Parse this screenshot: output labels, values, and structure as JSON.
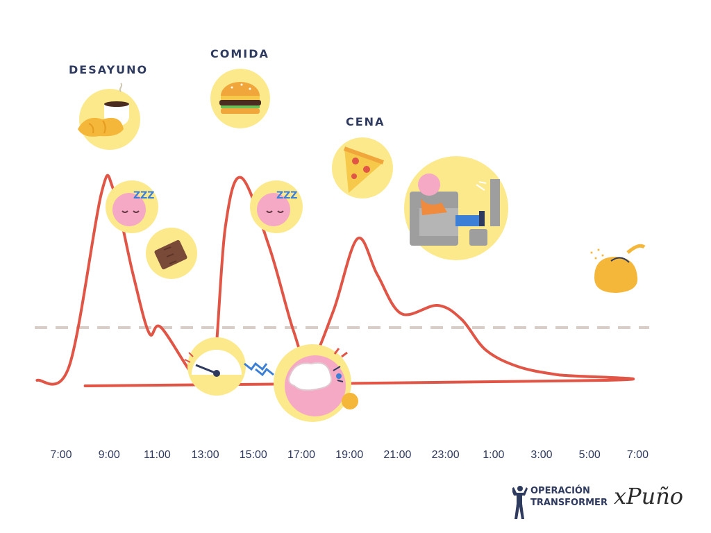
{
  "chart_data": {
    "type": "line",
    "title": "",
    "xlabel": "",
    "ylabel": "",
    "x_tick_labels": [
      "7:00",
      "9:00",
      "11:00",
      "13:00",
      "15:00",
      "17:00",
      "19:00",
      "21:00",
      "23:00",
      "1:00",
      "3:00",
      "5:00",
      "7:00"
    ],
    "series": [
      {
        "values": [
          [
            "6:00",
            1.5
          ],
          [
            "7:20",
            2.0
          ],
          [
            "8:40",
            8.2
          ],
          [
            "9:10",
            8.4
          ],
          [
            "10:00",
            5.3
          ],
          [
            "10:40",
            3.2
          ],
          [
            "11:10",
            3.4
          ],
          [
            "12:40",
            1.5
          ],
          [
            "13:20",
            1.7
          ],
          [
            "13:50",
            7.0
          ],
          [
            "14:30",
            8.8
          ],
          [
            "15:40",
            6.3
          ],
          [
            "16:40",
            3.3
          ],
          [
            "17:20",
            2.1
          ],
          [
            "18:20",
            4.0
          ],
          [
            "19:20",
            6.6
          ],
          [
            "20:10",
            5.3
          ],
          [
            "21:10",
            3.9
          ],
          [
            "22:40",
            4.2
          ],
          [
            "23:40",
            3.7
          ],
          [
            "0:40",
            2.6
          ],
          [
            "2:00",
            2.0
          ],
          [
            "3:40",
            1.7
          ],
          [
            "5:40",
            1.5
          ],
          [
            "8:00",
            1.3
          ]
        ]
      }
    ],
    "reference_line": {
      "style": "dashed",
      "y": 3.4,
      "color": "#d9cdc8"
    },
    "line_color": "#e05545",
    "grid": false,
    "legend": "none",
    "annotations": [
      {
        "text": "DESAYUNO",
        "x": "9:00"
      },
      {
        "text": "COMIDA",
        "x": "14:30"
      },
      {
        "text": "CENA",
        "x": "19:00"
      }
    ],
    "icons": [
      {
        "name": "coffee-croissant-icon",
        "at": "9:00"
      },
      {
        "name": "sleepy-face-icon",
        "at": "9:40"
      },
      {
        "name": "chocolate-icon",
        "at": "11:00"
      },
      {
        "name": "energy-gauge-icon",
        "at": "13:00"
      },
      {
        "name": "burger-icon",
        "at": "14:30"
      },
      {
        "name": "sleepy-face-icon",
        "at": "15:40"
      },
      {
        "name": "angry-brain-icon",
        "at": "17:10"
      },
      {
        "name": "pizza-icon",
        "at": "19:00"
      },
      {
        "name": "couch-tv-icon",
        "at": "23:00"
      },
      {
        "name": "sleeping-monster-icon",
        "at": "5:40"
      }
    ]
  },
  "accent_colors": {
    "circle": "#fbe98c",
    "line": "#e05545",
    "text": "#2f3a5f"
  },
  "brand": {
    "line1": "OPERACIÓN",
    "line2": "TRANSFORMER",
    "logo": "xPuño"
  }
}
